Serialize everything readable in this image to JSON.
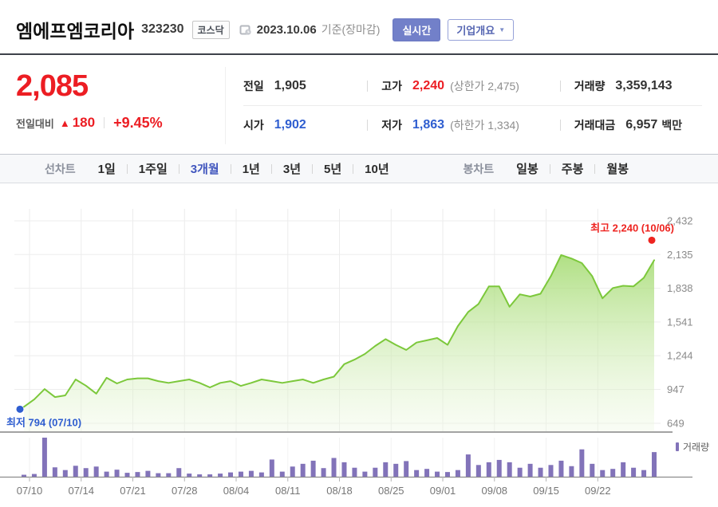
{
  "header": {
    "title": "엠에프엠코리아",
    "code": "323230",
    "market_badge": "코스닥",
    "date": "2023.10.06",
    "date_suffix": "기준(장마감)",
    "realtime_button": "실시간",
    "company_overview_button": "기업개요",
    "company_overview_arrow": "▼"
  },
  "price_summary": {
    "current_price": "2,085",
    "change_label": "전일대비",
    "change_direction": "▲",
    "change_value": "180",
    "change_percent": "+9.45%"
  },
  "quote_table": {
    "rows": [
      {
        "cells": [
          {
            "label": "전일",
            "value": "1,905"
          },
          {
            "label": "고가",
            "value": "2,240",
            "extra": "(상한가 2,475)"
          },
          {
            "label": "거래량",
            "value": "3,359,143"
          }
        ]
      },
      {
        "cells": [
          {
            "label": "시가",
            "value": "1,902"
          },
          {
            "label": "저가",
            "value": "1,863",
            "extra": "(하한가 1,334)"
          },
          {
            "label": "거래대금",
            "value": "6,957",
            "unit": "백만"
          }
        ]
      }
    ]
  },
  "toolbar": {
    "line_group_label": "선차트",
    "line_tabs": [
      {
        "label": "1일",
        "selected": false
      },
      {
        "label": "1주일",
        "selected": false
      },
      {
        "label": "3개월",
        "selected": true
      },
      {
        "label": "1년",
        "selected": false
      },
      {
        "label": "3년",
        "selected": false
      },
      {
        "label": "5년",
        "selected": false
      },
      {
        "label": "10년",
        "selected": false
      }
    ],
    "candle_group_label": "봉차트",
    "candle_tabs": [
      {
        "label": "일봉",
        "selected": false
      },
      {
        "label": "주봉",
        "selected": false
      },
      {
        "label": "월봉",
        "selected": false
      }
    ]
  },
  "chart_data": {
    "type": "area",
    "x_tick_labels": [
      "07/10",
      "07/14",
      "07/21",
      "07/28",
      "08/04",
      "08/11",
      "08/18",
      "08/25",
      "09/01",
      "09/08",
      "09/15",
      "09/22"
    ],
    "x_tick_indices": [
      0,
      5,
      10,
      15,
      20,
      25,
      30,
      35,
      40,
      45,
      50,
      55
    ],
    "y_tick_labels": [
      "2,432",
      "2,135",
      "1,838",
      "1,541",
      "1,244",
      "947",
      "649"
    ],
    "y_ticks": [
      2432,
      2135,
      1838,
      1541,
      1244,
      947,
      649
    ],
    "ylim": [
      649,
      2432
    ],
    "grid": true,
    "prices": [
      794,
      860,
      950,
      880,
      895,
      1035,
      980,
      910,
      1050,
      1000,
      1035,
      1045,
      1045,
      1020,
      1005,
      1020,
      1035,
      1005,
      965,
      1005,
      1020,
      978,
      1005,
      1035,
      1020,
      1005,
      1020,
      1035,
      1005,
      1035,
      1060,
      1170,
      1210,
      1260,
      1330,
      1390,
      1340,
      1295,
      1360,
      1380,
      1400,
      1340,
      1505,
      1630,
      1700,
      1855,
      1855,
      1675,
      1785,
      1765,
      1790,
      1945,
      2130,
      2100,
      2060,
      1945,
      1750,
      1840,
      1860,
      1855,
      1930,
      2085
    ],
    "volumes_pct": [
      5,
      7,
      100,
      24,
      17,
      28,
      22,
      26,
      13,
      18,
      10,
      12,
      15,
      9,
      9,
      22,
      8,
      6,
      6,
      8,
      11,
      13,
      15,
      11,
      44,
      13,
      26,
      33,
      41,
      22,
      48,
      37,
      23,
      13,
      23,
      37,
      33,
      40,
      17,
      20,
      13,
      12,
      17,
      57,
      30,
      37,
      43,
      37,
      23,
      33,
      23,
      30,
      41,
      27,
      70,
      33,
      17,
      20,
      37,
      23,
      17,
      63
    ],
    "annotations": {
      "max": {
        "label": "최고 2,240 (10/06)",
        "price": 2240,
        "index": 61
      },
      "min": {
        "label": "최저 794 (07/10)",
        "price": 794,
        "index": 0
      }
    },
    "legend": {
      "volume_label": "거래량",
      "position": "volume-pane-top-right"
    },
    "colors": {
      "line": "#7cc83b",
      "fill_top": "#a2da6e",
      "fill_bottom": "#eef8e2",
      "volume": "#8273b9",
      "max_red": "#ee2420",
      "min_blue": "#2f5ed0",
      "grid": "#ececec",
      "axis_text": "#8a8a8a",
      "tab_accent": "#4156be"
    }
  }
}
